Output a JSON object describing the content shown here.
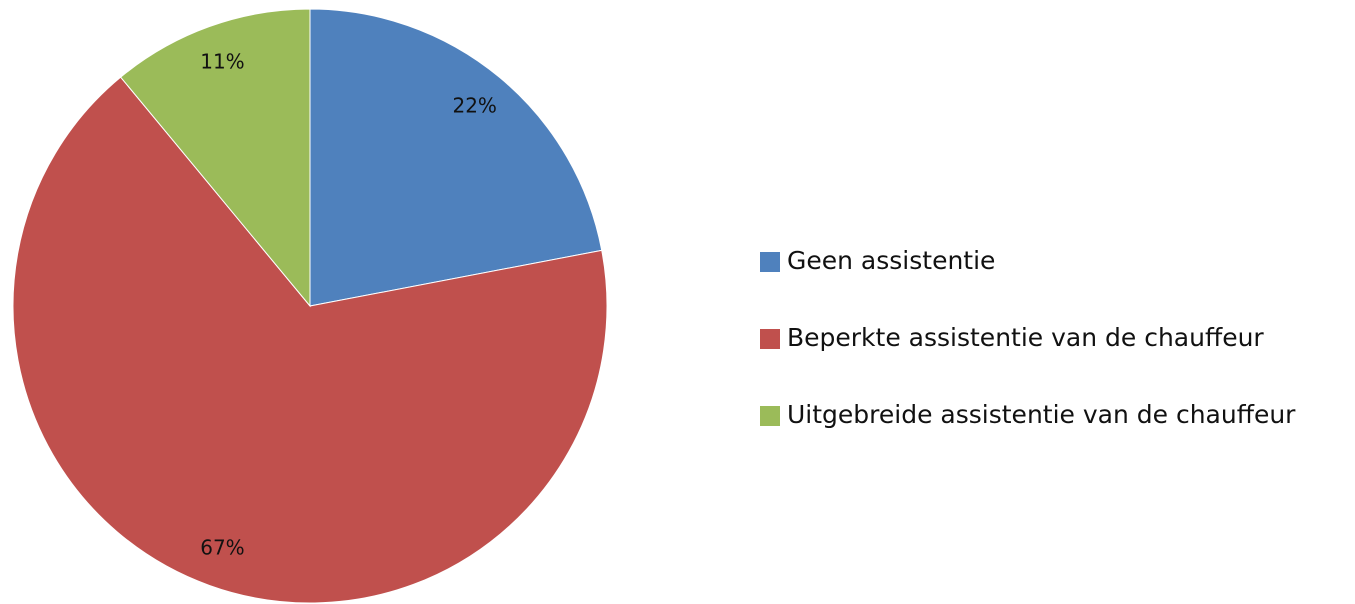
{
  "chart_data": {
    "type": "pie",
    "categories": [
      "Geen assistentie",
      "Beperkte assistentie van de chauffeur",
      "Uitgebreide assistentie van de chauffeur"
    ],
    "values": [
      22,
      67,
      11
    ],
    "value_labels": [
      "22%",
      "67%",
      "11%"
    ],
    "colors": [
      "#4f81bd",
      "#c0504d",
      "#9bbb59"
    ],
    "legend": "right"
  }
}
